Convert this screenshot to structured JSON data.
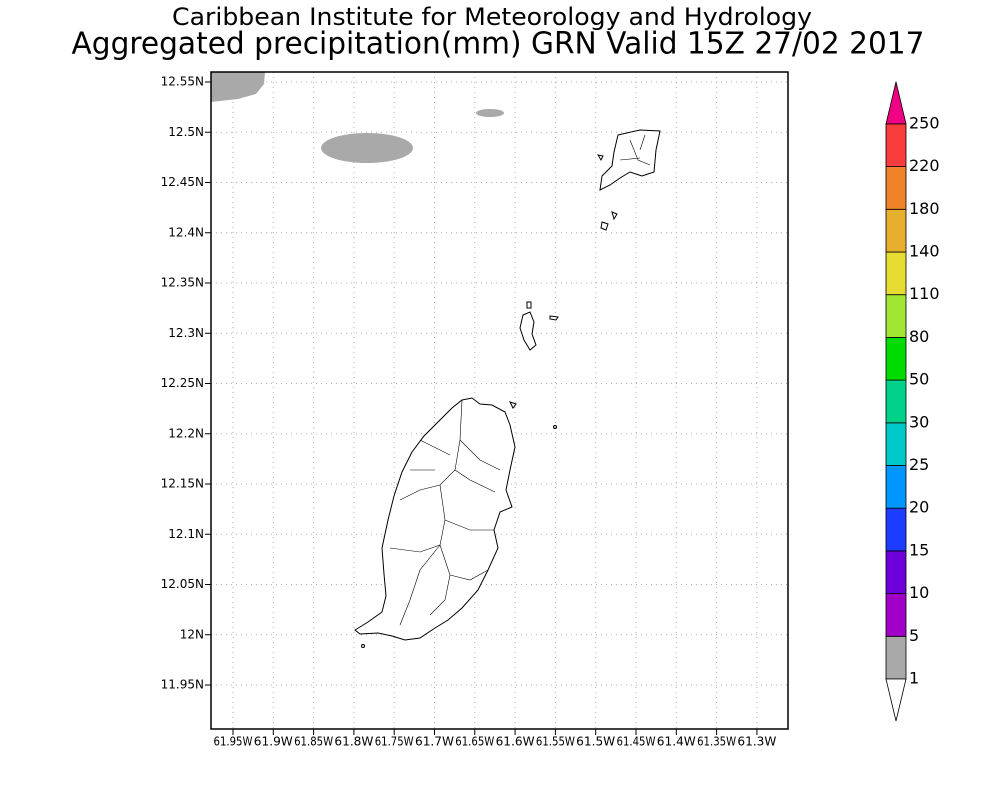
{
  "title": "Caribbean Institute for Meteorology and Hydrology",
  "subtitle": "Aggregated precipitation(mm) GRN Valid 15Z 27/02 2017",
  "lat_labels": [
    "12.55N",
    "12.5N",
    "12.45N",
    "12.4N",
    "12.35N",
    "12.3N",
    "12.25N",
    "12.2N",
    "12.15N",
    "12.1N",
    "12.05N",
    "12N",
    "11.95N"
  ],
  "lon_labels": [
    "61.95W",
    "61.9W",
    "61.85W",
    "61.8W",
    "61.75W",
    "61.7W",
    "61.65W",
    "61.6W",
    "61.55W",
    "61.5W",
    "61.45W",
    "61.4W",
    "61.35W",
    "61.3W"
  ],
  "legend": {
    "levels": [
      1,
      5,
      10,
      15,
      20,
      25,
      30,
      50,
      80,
      110,
      140,
      180,
      220,
      250
    ],
    "colors": [
      "#a9a9a9",
      "#a000c8",
      "#6e00dc",
      "#1e3cff",
      "#0096ff",
      "#00c8c8",
      "#00d28c",
      "#00dc00",
      "#a0e632",
      "#e6dc32",
      "#e6af2d",
      "#f08228",
      "#fa3c3c"
    ],
    "under_color": "#ffffff",
    "over_color": "#f00082"
  }
}
